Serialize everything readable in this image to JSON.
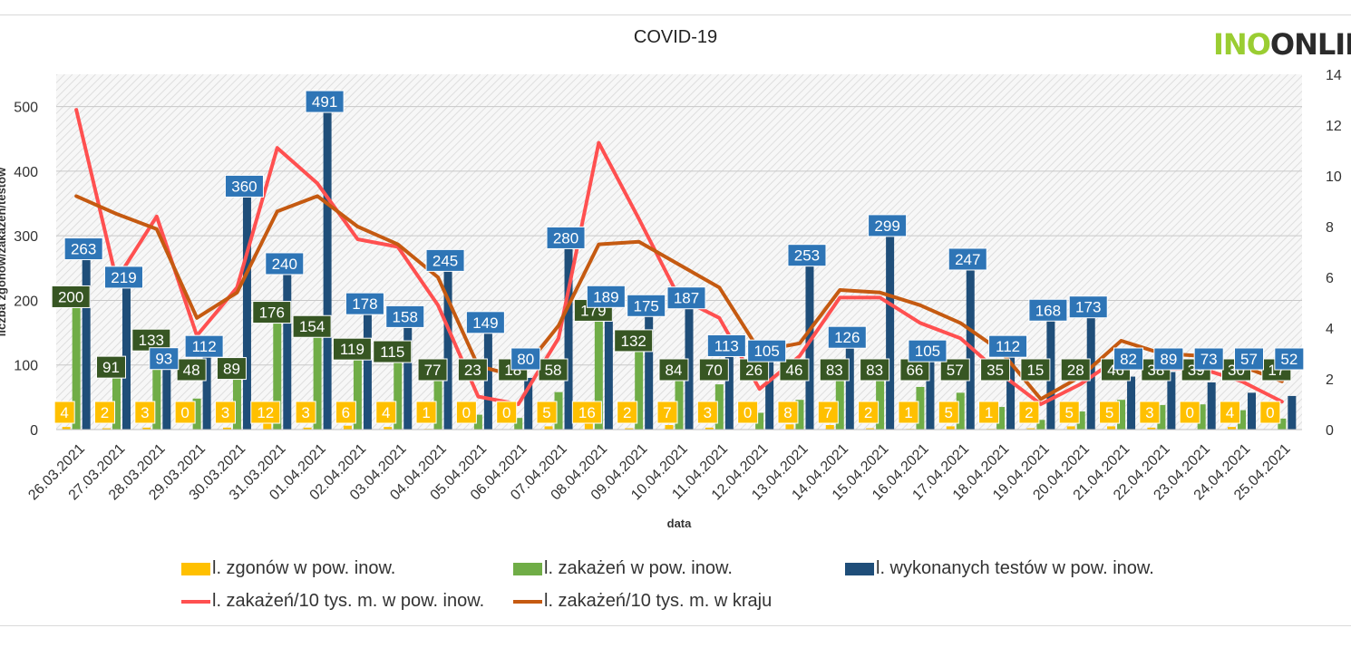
{
  "chart_data": {
    "type": "bar",
    "title": "COVID-19",
    "xlabel": "data",
    "ylabel": "liczba zgonów/zakażeń/testów",
    "ylim": [
      0,
      550
    ],
    "y_ticks": [
      0,
      100,
      200,
      300,
      400,
      500
    ],
    "y2lim": [
      0,
      14
    ],
    "y2_ticks": [
      0,
      2,
      4,
      6,
      8,
      10,
      12,
      14
    ],
    "grid": true,
    "legend_position": "bottom",
    "categories": [
      "26.03.2021",
      "27.03.2021",
      "28.03.2021",
      "29.03.2021",
      "30.03.2021",
      "31.03.2021",
      "01.04.2021",
      "02.04.2021",
      "03.04.2021",
      "04.04.2021",
      "05.04.2021",
      "06.04.2021",
      "07.04.2021",
      "08.04.2021",
      "09.04.2021",
      "10.04.2021",
      "11.04.2021",
      "12.04.2021",
      "13.04.2021",
      "14.04.2021",
      "15.04.2021",
      "16.04.2021",
      "17.04.2021",
      "18.04.2021",
      "19.04.2021",
      "20.04.2021",
      "21.04.2021",
      "22.04.2021",
      "23.04.2021",
      "24.04.2021",
      "25.04.2021"
    ],
    "series": [
      {
        "name": "l. zgonów w pow. inow.",
        "kind": "bar",
        "axis": "left",
        "color": "#ffc000",
        "label_bg": "#ffc000",
        "label_color": "#ffffff",
        "values": [
          4,
          2,
          3,
          0,
          3,
          12,
          3,
          6,
          4,
          1,
          0,
          0,
          5,
          16,
          2,
          7,
          3,
          0,
          8,
          7,
          2,
          1,
          5,
          1,
          2,
          5,
          5,
          3,
          0,
          4,
          0
        ]
      },
      {
        "name": "l. zakażeń w pow. inow.",
        "kind": "bar",
        "axis": "left",
        "color": "#70ad47",
        "label_bg": "#375623",
        "label_color": "#ffffff",
        "values": [
          200,
          91,
          133,
          48,
          89,
          176,
          154,
          119,
          115,
          77,
          23,
          18,
          58,
          179,
          132,
          84,
          70,
          26,
          46,
          83,
          83,
          66,
          57,
          35,
          15,
          28,
          46,
          38,
          39,
          30,
          17
        ]
      },
      {
        "name": "l. wykonanych testów w pow. inow.",
        "kind": "bar",
        "axis": "left",
        "color": "#1f4e79",
        "label_bg": "#2e75b6",
        "label_color": "#ffffff",
        "values": [
          263,
          219,
          93,
          112,
          360,
          240,
          491,
          178,
          158,
          245,
          149,
          80,
          280,
          189,
          175,
          187,
          113,
          105,
          253,
          126,
          299,
          105,
          247,
          112,
          168,
          173,
          82,
          89,
          73,
          57,
          52
        ]
      },
      {
        "name": "l. zakażeń/10 tys. m. w pow. inow.",
        "kind": "line",
        "axis": "right",
        "color": "#ff5050",
        "values": [
          12.6,
          5.9,
          8.4,
          3.7,
          5.6,
          11.1,
          9.7,
          7.5,
          7.2,
          4.9,
          1.3,
          1.0,
          3.6,
          11.3,
          8.3,
          5.2,
          4.4,
          1.6,
          2.9,
          5.2,
          5.2,
          4.2,
          3.6,
          2.2,
          1.0,
          1.8,
          2.9,
          2.4,
          2.4,
          1.9,
          1.1
        ]
      },
      {
        "name": "l. zakażeń/10 tys. m. w kraju",
        "kind": "line",
        "axis": "right",
        "color": "#c55a11",
        "values": [
          9.2,
          8.5,
          7.9,
          4.4,
          5.4,
          8.6,
          9.2,
          8.0,
          7.3,
          6.0,
          2.5,
          2.1,
          4.1,
          7.3,
          7.4,
          6.5,
          5.6,
          3.1,
          3.4,
          5.5,
          5.4,
          4.9,
          4.2,
          3.1,
          1.2,
          2.1,
          3.5,
          3.0,
          2.9,
          2.5,
          1.9
        ]
      }
    ]
  },
  "logo": {
    "light": "INO",
    "dark": "ONLIN"
  }
}
